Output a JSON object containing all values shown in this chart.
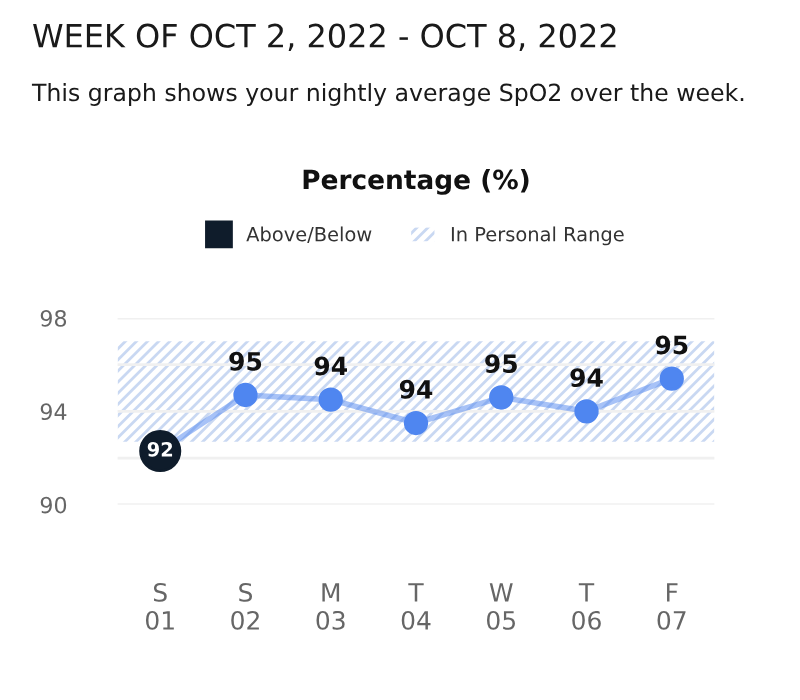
{
  "chart_data": {
    "type": "line",
    "title": "WEEK OF OCT 2, 2022 - OCT 8, 2022",
    "subtitle": "This graph shows your nightly average SpO2 over the week.",
    "ylabel": "Percentage (%)",
    "categories": [
      "S\n01",
      "S\n02",
      "M\n03",
      "T\n04",
      "W\n05",
      "T\n06",
      "F\n07"
    ],
    "series": [
      {
        "color": "#4f86f0",
        "marker": "circle",
        "values": [
          92.3,
          94.7,
          94.5,
          93.5,
          94.6,
          94.0,
          95.4
        ],
        "value_labels": [
          null,
          "95",
          "94",
          "94",
          "95",
          "94",
          "95"
        ]
      },
      {
        "type": "scatter",
        "name": "Above/Below",
        "color": "#0f1c2b",
        "marker": "circle",
        "values": [
          92.3,
          null,
          null,
          null,
          null,
          null,
          null
        ],
        "value_labels": [
          "92",
          null,
          null,
          null,
          null,
          null,
          null
        ]
      }
    ],
    "ylim": [
      90,
      98
    ],
    "yticks": [
      90,
      {
        "value": 92,
        "label": null
      },
      94,
      {
        "value": 96,
        "label": null
      },
      98
    ],
    "grid": "y",
    "legend": "top",
    "bands": [
      {
        "axis": "y",
        "from": 92.7,
        "to": 97.0,
        "label": "In Personal Range",
        "color": "#c9d8f2"
      }
    ]
  }
}
